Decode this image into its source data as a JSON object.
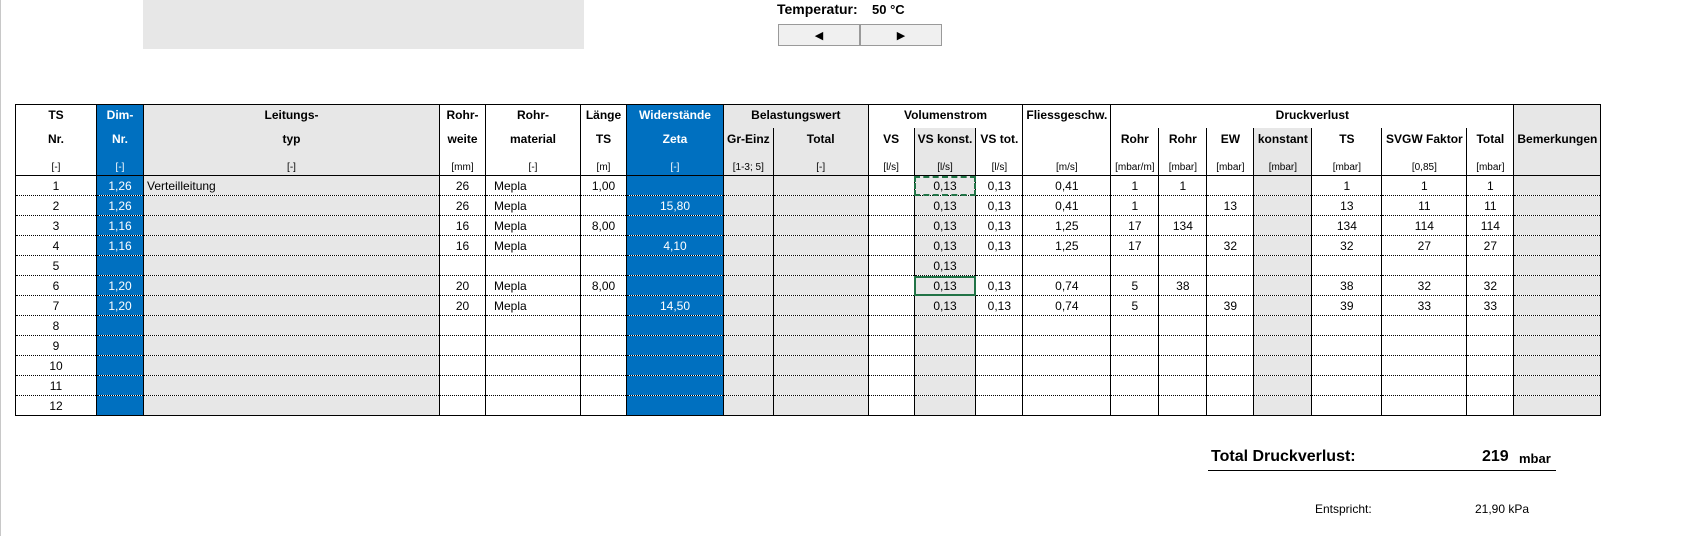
{
  "temperature": {
    "label": "Temperatur:",
    "value": "50 °C",
    "decrease": "◀",
    "increase": "▶"
  },
  "header": {
    "r1": [
      "TS",
      "Dim-",
      "Leitungs-",
      "Rohr-",
      "Rohr-",
      "Länge",
      "Widerstände",
      "Belastungswert",
      "Volumenstrom",
      "Fliessgeschw.",
      "Druckverlust",
      ""
    ],
    "r2": [
      "Nr.",
      "Nr.",
      "typ",
      "weite",
      "material",
      "TS",
      "Zeta",
      "Gr-Einz",
      "Total",
      "VS",
      "VS konst.",
      "VS tot.",
      "",
      "Rohr",
      "Rohr",
      "EW",
      "konstant",
      "TS",
      "SVGW Faktor",
      "Total",
      "Bemerkungen"
    ],
    "r3": [
      "[-]",
      "[-]",
      "[-]",
      "[mm]",
      "[-]",
      "[m]",
      "[-]",
      "[1-3; 5]",
      "[-]",
      "[l/s]",
      "[l/s]",
      "[l/s]",
      "[m/s]",
      "[mbar/m]",
      "[mbar]",
      "[mbar]",
      "[mbar]",
      "[mbar]",
      "[0,85]",
      "[mbar]",
      ""
    ]
  },
  "rows": [
    [
      "1",
      "1,26",
      "Verteilleitung",
      "26",
      "Mepla",
      "1,00",
      "",
      "",
      "",
      "",
      "0,13",
      "0,13",
      "0,41",
      "1",
      "1",
      "",
      "",
      "1",
      "1",
      "1",
      ""
    ],
    [
      "2",
      "1,26",
      "",
      "26",
      "Mepla",
      "",
      "15,80",
      "",
      "",
      "",
      "0,13",
      "0,13",
      "0,41",
      "1",
      "",
      "13",
      "",
      "13",
      "11",
      "11",
      ""
    ],
    [
      "3",
      "1,16",
      "",
      "16",
      "Mepla",
      "8,00",
      "",
      "",
      "",
      "",
      "0,13",
      "0,13",
      "1,25",
      "17",
      "134",
      "",
      "",
      "134",
      "114",
      "114",
      ""
    ],
    [
      "4",
      "1,16",
      "",
      "16",
      "Mepla",
      "",
      "4,10",
      "",
      "",
      "",
      "0,13",
      "0,13",
      "1,25",
      "17",
      "",
      "32",
      "",
      "32",
      "27",
      "27",
      ""
    ],
    [
      "5",
      "",
      "",
      "",
      "",
      "",
      "",
      "",
      "",
      "",
      "0,13",
      "",
      "",
      "",
      "",
      "",
      "",
      "",
      "",
      "",
      ""
    ],
    [
      "6",
      "1,20",
      "",
      "20",
      "Mepla",
      "8,00",
      "",
      "",
      "",
      "",
      "0,13",
      "0,13",
      "0,74",
      "5",
      "38",
      "",
      "",
      "38",
      "32",
      "32",
      ""
    ],
    [
      "7",
      "1,20",
      "",
      "20",
      "Mepla",
      "",
      "14,50",
      "",
      "",
      "",
      "0,13",
      "0,13",
      "0,74",
      "5",
      "",
      "39",
      "",
      "39",
      "33",
      "33",
      ""
    ],
    [
      "8",
      "",
      "",
      "",
      "",
      "",
      "",
      "",
      "",
      "",
      "",
      "",
      "",
      "",
      "",
      "",
      "",
      "",
      "",
      "",
      ""
    ],
    [
      "9",
      "",
      "",
      "",
      "",
      "",
      "",
      "",
      "",
      "",
      "",
      "",
      "",
      "",
      "",
      "",
      "",
      "",
      "",
      "",
      ""
    ],
    [
      "10",
      "",
      "",
      "",
      "",
      "",
      "",
      "",
      "",
      "",
      "",
      "",
      "",
      "",
      "",
      "",
      "",
      "",
      "",
      "",
      ""
    ],
    [
      "11",
      "",
      "",
      "",
      "",
      "",
      "",
      "",
      "",
      "",
      "",
      "",
      "",
      "",
      "",
      "",
      "",
      "",
      "",
      "",
      ""
    ],
    [
      "12",
      "",
      "",
      "",
      "",
      "",
      "",
      "",
      "",
      "",
      "",
      "",
      "",
      "",
      "",
      "",
      "",
      "",
      "",
      "",
      ""
    ]
  ],
  "summary": {
    "total_label": "Total Druckverlust:",
    "total_value": "219",
    "total_unit": "mbar",
    "equiv_label": "Entspricht:",
    "equiv_value": "21,90 kPa"
  },
  "colors": {
    "accent_blue": "#0070c0",
    "shade_gray": "#e7e7e7",
    "selection_green": "#217346"
  }
}
